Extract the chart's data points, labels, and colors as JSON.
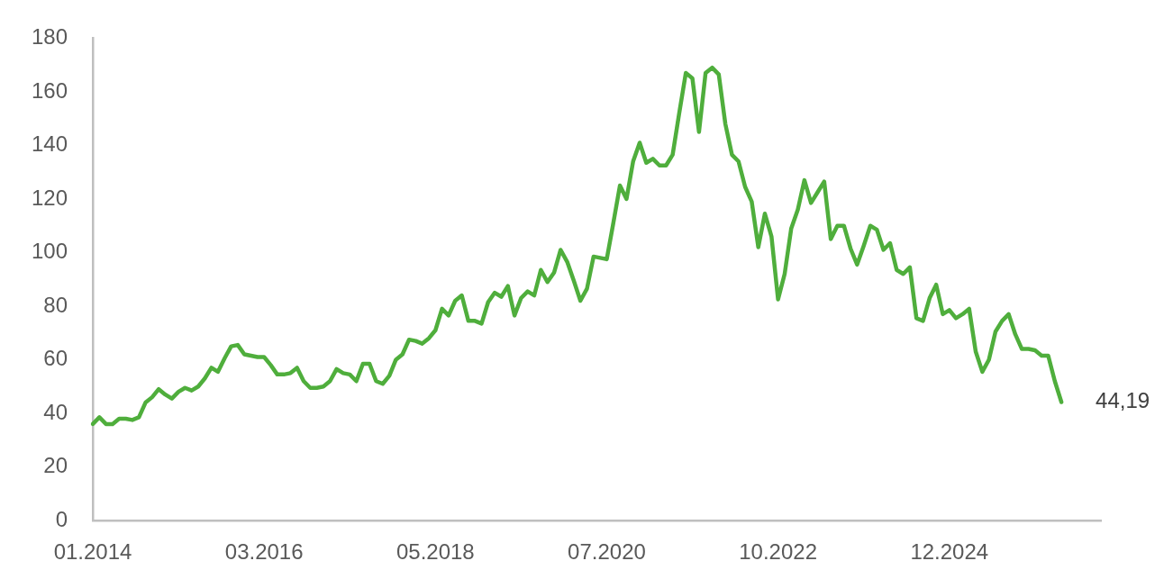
{
  "chart_data": {
    "type": "line",
    "color": "#4fae3c",
    "categories": [
      "01.2014",
      null,
      null,
      null,
      null,
      null,
      null,
      null,
      null,
      null,
      null,
      null,
      null,
      null,
      null,
      null,
      null,
      null,
      null,
      null,
      null,
      null,
      null,
      null,
      null,
      null,
      "03.2016",
      null,
      null,
      null,
      null,
      null,
      null,
      null,
      null,
      null,
      null,
      null,
      null,
      null,
      null,
      null,
      null,
      null,
      null,
      null,
      null,
      null,
      null,
      null,
      null,
      null,
      "05.2018",
      null,
      null,
      null,
      null,
      null,
      null,
      null,
      null,
      null,
      null,
      null,
      null,
      null,
      null,
      null,
      null,
      null,
      null,
      null,
      null,
      null,
      null,
      null,
      null,
      null,
      "07.2020",
      null,
      null,
      null,
      null,
      null,
      null,
      null,
      null,
      null,
      null,
      null,
      null,
      null,
      null,
      null,
      null,
      null,
      null,
      null,
      null,
      null,
      null,
      null,
      null,
      null,
      "10.2022",
      null,
      null,
      null,
      null,
      null,
      null,
      null,
      null,
      null,
      null,
      null,
      null,
      null,
      null,
      null,
      null,
      null,
      null,
      null,
      null,
      null,
      null,
      null,
      null,
      null,
      "12.2024",
      null,
      null,
      null,
      null,
      null,
      null,
      null,
      null,
      null,
      null,
      null,
      null,
      null,
      null,
      null,
      null,
      null,
      null,
      null,
      null,
      null,
      null,
      null
    ],
    "values": [
      36,
      38.5,
      36,
      36,
      38,
      38,
      37.5,
      38.5,
      44,
      46,
      49,
      47,
      45.5,
      48,
      49.5,
      48.5,
      50,
      53,
      57,
      55.5,
      60.5,
      65,
      65.5,
      62,
      61.5,
      61,
      61,
      58,
      54.5,
      54.5,
      55,
      57,
      52,
      49.5,
      49.5,
      50,
      52,
      56.5,
      55,
      54.5,
      52,
      58.5,
      58.5,
      52,
      51,
      54,
      60,
      62,
      67.5,
      67,
      66,
      68,
      71,
      79,
      76.5,
      82,
      84,
      74.5,
      74.5,
      73.5,
      81.5,
      85,
      83.5,
      87.5,
      76.5,
      83,
      85.5,
      84,
      93.5,
      89,
      92.5,
      101,
      96.5,
      89.5,
      82,
      86.5,
      98.5,
      98,
      97.5,
      111,
      125,
      120,
      134,
      141,
      133.5,
      135,
      132.5,
      132.5,
      136.5,
      152,
      167,
      165,
      145,
      167,
      169,
      166.5,
      148,
      136.5,
      134,
      124.5,
      119,
      102,
      114.5,
      106,
      82.5,
      92,
      109,
      116,
      127,
      118.5,
      122.5,
      126.5,
      105,
      110,
      110,
      101.5,
      95.5,
      102.5,
      110,
      108.5,
      101,
      103.5,
      93.5,
      92,
      94.5,
      75.5,
      74.5,
      83,
      88,
      77,
      78.5,
      75.5,
      77,
      79,
      63,
      55.5,
      60,
      70.5,
      74.5,
      77,
      69.5,
      64,
      64,
      63.5,
      61.5,
      61.5,
      52,
      44.19,
      null,
      null,
      null,
      null,
      null,
      null
    ],
    "value_labels": [
      null,
      null,
      null,
      null,
      null,
      null,
      null,
      null,
      null,
      null,
      null,
      null,
      null,
      null,
      null,
      null,
      null,
      null,
      null,
      null,
      null,
      null,
      null,
      null,
      null,
      null,
      null,
      null,
      null,
      null,
      null,
      null,
      null,
      null,
      null,
      null,
      null,
      null,
      null,
      null,
      null,
      null,
      null,
      null,
      null,
      null,
      null,
      null,
      null,
      null,
      null,
      null,
      null,
      null,
      null,
      null,
      null,
      null,
      null,
      null,
      null,
      null,
      null,
      null,
      null,
      null,
      null,
      null,
      null,
      null,
      null,
      null,
      null,
      null,
      null,
      null,
      null,
      null,
      null,
      null,
      null,
      null,
      null,
      null,
      null,
      null,
      null,
      null,
      null,
      null,
      null,
      null,
      null,
      null,
      null,
      null,
      null,
      null,
      null,
      null,
      null,
      null,
      null,
      null,
      null,
      null,
      null,
      null,
      null,
      null,
      null,
      null,
      null,
      null,
      null,
      null,
      null,
      null,
      null,
      null,
      null,
      null,
      null,
      null,
      null,
      null,
      null,
      null,
      null,
      null,
      null,
      null,
      null,
      null,
      null,
      null,
      null,
      null,
      null,
      null,
      null,
      null,
      null,
      null,
      null,
      null,
      null,
      "44,19",
      null,
      null,
      null,
      null,
      null,
      null
    ],
    "ylim": [
      0,
      180
    ],
    "yticks": [
      0,
      20,
      40,
      60,
      80,
      100,
      120,
      140,
      160,
      180
    ]
  }
}
